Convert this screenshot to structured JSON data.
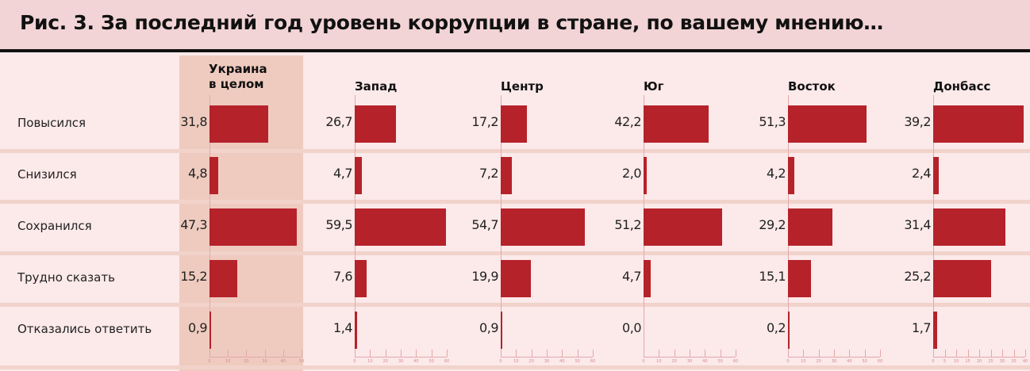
{
  "title": "Рис. 3. За последний год уровень коррупции в стране, по вашему мнению…",
  "chart_data": {
    "type": "bar",
    "orientation": "horizontal",
    "title": "Рис. 3. За последний год уровень коррупции в стране, по вашему мнению…",
    "categories": [
      "Повысился",
      "Снизился",
      "Сохранился",
      "Трудно сказать",
      "Отказались ответить"
    ],
    "bar_color": "#b5222a",
    "highlight_color": "#efcbbf",
    "series": [
      {
        "name": "Украина\nв целом",
        "values": [
          "31,8",
          "4,8",
          "47,3",
          "15,2",
          "0,9"
        ],
        "xlim": [
          0,
          50
        ],
        "ticks": [
          "0",
          "10",
          "20",
          "30",
          "40",
          "50"
        ],
        "highlighted": true
      },
      {
        "name": "Запад",
        "values": [
          "26,7",
          "4,7",
          "59,5",
          "7,6",
          "1,4"
        ],
        "xlim": [
          0,
          60
        ],
        "ticks": [
          "0",
          "10",
          "20",
          "30",
          "40",
          "50",
          "60"
        ]
      },
      {
        "name": "Центр",
        "values": [
          "17,2",
          "7,2",
          "54,7",
          "19,9",
          "0,9"
        ],
        "xlim": [
          0,
          60
        ],
        "ticks": [
          "0",
          "10",
          "20",
          "30",
          "40",
          "50",
          "60"
        ]
      },
      {
        "name": "Юг",
        "values": [
          "42,2",
          "2,0",
          "51,2",
          "4,7",
          "0,0"
        ],
        "xlim": [
          0,
          60
        ],
        "ticks": [
          "0",
          "10",
          "20",
          "30",
          "40",
          "50",
          "60"
        ]
      },
      {
        "name": "Восток",
        "values": [
          "51,3",
          "4,2",
          "29,2",
          "15,1",
          "0,2"
        ],
        "xlim": [
          0,
          60
        ],
        "ticks": [
          "0",
          "10",
          "20",
          "30",
          "40",
          "50",
          "60"
        ]
      },
      {
        "name": "Донбасс",
        "values": [
          "39,2",
          "2,4",
          "31,4",
          "25,2",
          "1,7"
        ],
        "xlim": [
          0,
          40
        ],
        "ticks": [
          "0",
          "5",
          "10",
          "15",
          "20",
          "25",
          "30",
          "35",
          "40"
        ]
      }
    ]
  }
}
